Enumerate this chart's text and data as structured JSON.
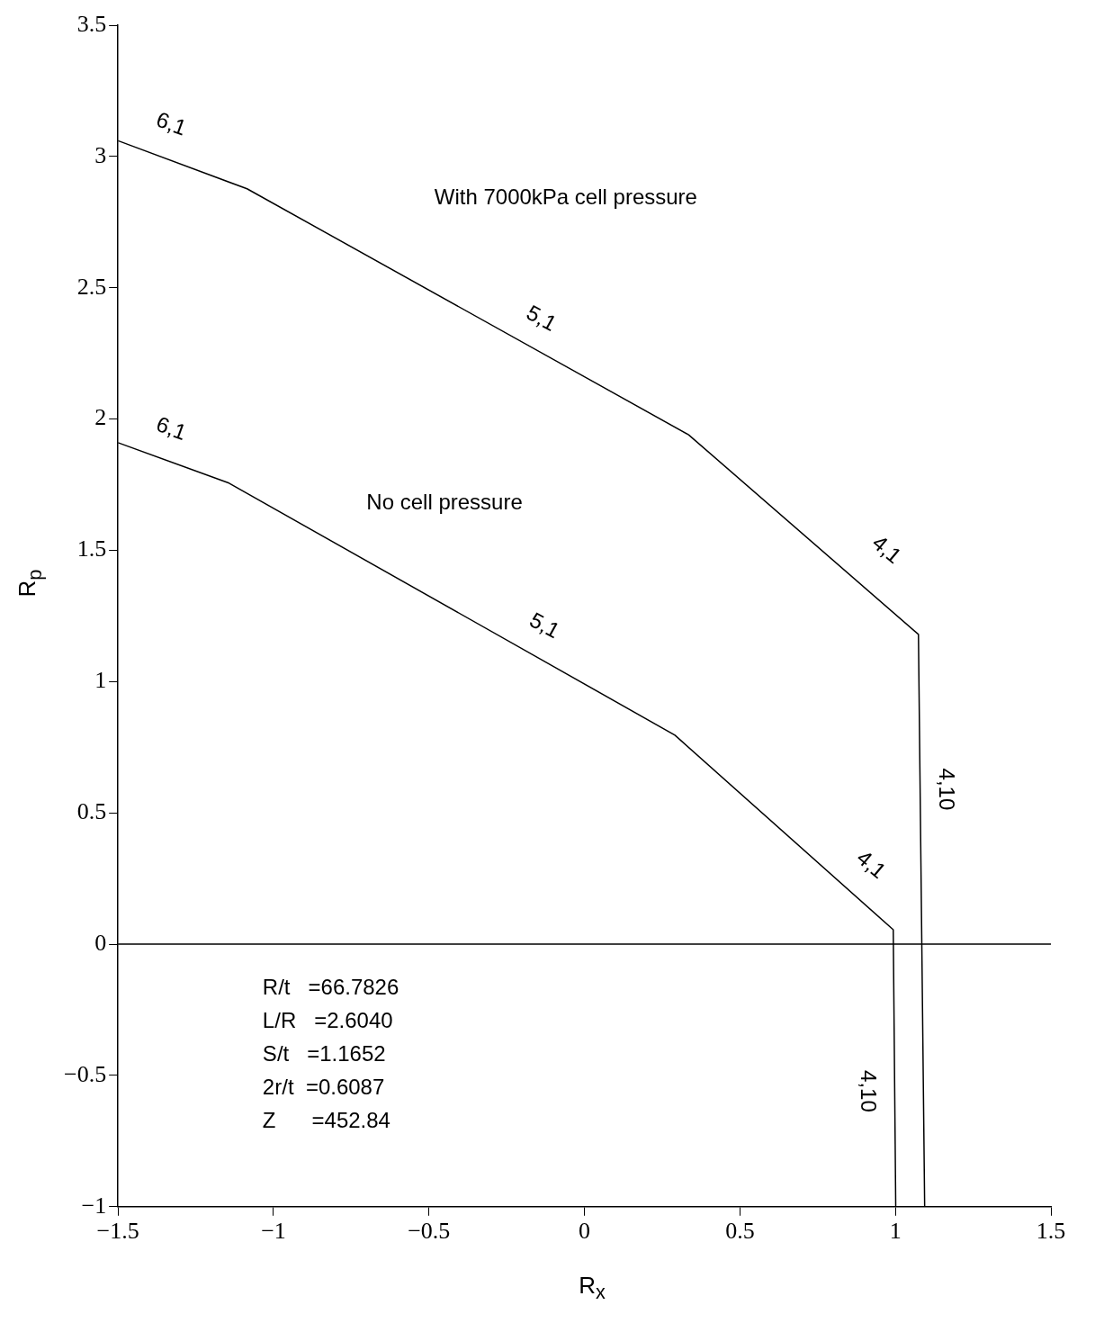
{
  "chart_data": {
    "type": "line",
    "xlabel": "R$_{x}$",
    "ylabel": "R$_{p}$",
    "xlim": [
      -1.5,
      1.5
    ],
    "xticks": [
      -1.5,
      -1,
      -0.5,
      0,
      0.5,
      1,
      1.5
    ],
    "ylim": [
      -1,
      3.5
    ],
    "yticks": [
      -1,
      -0.5,
      0,
      0.5,
      1,
      1.5,
      2,
      2.5,
      3,
      3.5
    ],
    "series": [
      {
        "color": "#000000",
        "x": [
          -1.5,
          -1.085,
          0.335,
          1.074,
          1.094
        ],
        "values": [
          3.06,
          2.877,
          1.94,
          1.18,
          -1
        ]
      },
      {
        "color": "#000000",
        "x": [
          -1.5,
          -1.143,
          0.291,
          0.993,
          1.001
        ],
        "values": [
          1.91,
          1.756,
          0.796,
          0.055,
          -1
        ]
      }
    ],
    "ref_lines": [
      {
        "axis": "y",
        "value": 0,
        "color": "#000000"
      }
    ],
    "marker": "none",
    "line_style": "solid",
    "grid": false,
    "legend": false,
    "annotations": [
      "With 7000kPa cell pressure",
      "No cell pressure",
      "6,1",
      "5,1",
      "4,1",
      "4,10",
      "6,1",
      "5,1",
      "4,1",
      "4,10",
      "R/t   =66.7826",
      "L/R   =2.6040",
      "S/t   =1.1652",
      "2r/t  =0.6087",
      "Z      =452.84"
    ]
  }
}
